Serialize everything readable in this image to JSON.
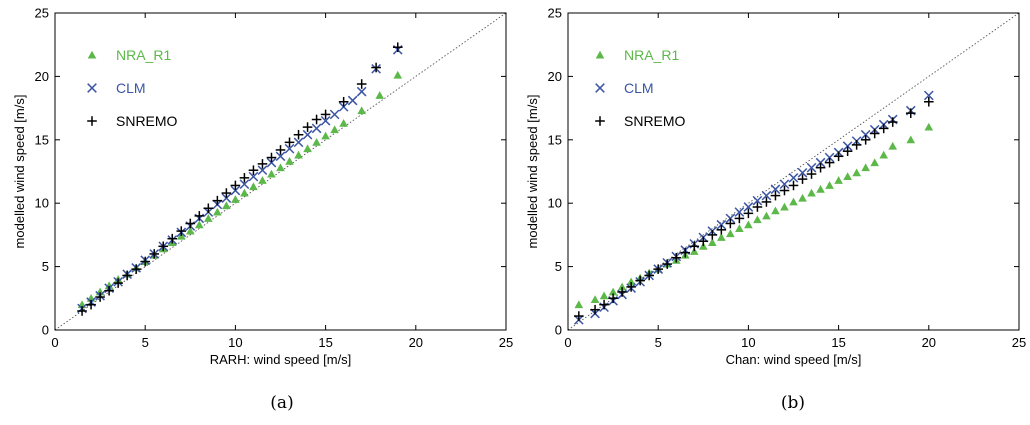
{
  "chart_data": [
    {
      "type": "scatter",
      "caption": "(a)",
      "xlabel": "RARH: wind speed [m/s]",
      "ylabel": "modelled wind speed [m/s]",
      "xlim": [
        0,
        25
      ],
      "ylim": [
        0,
        25
      ],
      "xticks": [
        0,
        5,
        10,
        15,
        20,
        25
      ],
      "yticks": [
        0,
        5,
        10,
        15,
        20,
        25
      ],
      "grid": false,
      "legend_position": "top-left",
      "reference_line": "1:1 dotted diagonal",
      "series": [
        {
          "name": "NRA_R1",
          "marker": "triangle",
          "color": "#5cb848",
          "x": [
            1.5,
            2.0,
            2.5,
            3.0,
            3.5,
            4.0,
            4.5,
            5.0,
            5.5,
            6.0,
            6.5,
            7.0,
            7.5,
            8.0,
            8.5,
            9.0,
            9.5,
            10.0,
            10.5,
            11.0,
            11.5,
            12.0,
            12.5,
            13.0,
            13.5,
            14.0,
            14.5,
            15.0,
            15.5,
            16.0,
            17.0,
            18.0,
            19.0
          ],
          "y": [
            2.0,
            2.5,
            3.0,
            3.5,
            4.0,
            4.4,
            4.9,
            5.4,
            5.9,
            6.4,
            6.9,
            7.4,
            7.8,
            8.3,
            8.8,
            9.3,
            9.8,
            10.3,
            10.8,
            11.3,
            11.8,
            12.3,
            12.8,
            13.3,
            13.8,
            14.3,
            14.8,
            15.3,
            15.8,
            16.3,
            17.3,
            18.5,
            20.1
          ]
        },
        {
          "name": "CLM",
          "marker": "x",
          "color": "#3b55a4",
          "x": [
            1.5,
            2.0,
            2.5,
            3.0,
            3.5,
            4.0,
            4.5,
            5.0,
            5.5,
            6.0,
            6.5,
            7.0,
            7.5,
            8.0,
            8.5,
            9.0,
            9.5,
            10.0,
            10.5,
            11.0,
            11.5,
            12.0,
            12.5,
            13.0,
            13.5,
            14.0,
            14.5,
            15.0,
            15.5,
            16.0,
            16.5,
            17.0,
            17.8,
            19.0
          ],
          "y": [
            1.7,
            2.2,
            2.7,
            3.3,
            3.8,
            4.4,
            4.9,
            5.5,
            6.0,
            6.6,
            7.1,
            7.7,
            8.2,
            8.8,
            9.3,
            9.9,
            10.4,
            11.0,
            11.5,
            12.1,
            12.6,
            13.2,
            13.7,
            14.3,
            14.8,
            15.4,
            15.9,
            16.5,
            17.0,
            17.6,
            18.1,
            18.8,
            20.6,
            22.1
          ]
        },
        {
          "name": "SNREMO",
          "marker": "plus",
          "color": "#000000",
          "x": [
            1.5,
            2.0,
            2.5,
            3.0,
            3.5,
            4.0,
            4.5,
            5.0,
            5.5,
            6.0,
            6.5,
            7.0,
            7.5,
            8.0,
            8.5,
            9.0,
            9.5,
            10.0,
            10.5,
            11.0,
            11.5,
            12.0,
            12.5,
            13.0,
            13.5,
            14.0,
            14.5,
            15.0,
            16.0,
            17.0,
            17.8,
            19.0
          ],
          "y": [
            1.5,
            2.0,
            2.6,
            3.1,
            3.7,
            4.3,
            4.8,
            5.4,
            6.0,
            6.6,
            7.2,
            7.8,
            8.4,
            9.0,
            9.6,
            10.2,
            10.8,
            11.4,
            12.0,
            12.6,
            13.1,
            13.6,
            14.2,
            14.8,
            15.4,
            16.0,
            16.6,
            17.0,
            18.0,
            19.4,
            20.7,
            22.3
          ]
        }
      ]
    },
    {
      "type": "scatter",
      "caption": "(b)",
      "xlabel": "Chan: wind speed [m/s]",
      "ylabel": "modelled wind speed [m/s]",
      "xlim": [
        0,
        25
      ],
      "ylim": [
        0,
        25
      ],
      "xticks": [
        0,
        5,
        10,
        15,
        20,
        25
      ],
      "yticks": [
        0,
        5,
        10,
        15,
        20,
        25
      ],
      "grid": false,
      "legend_position": "top-left",
      "reference_line": "1:1 dotted diagonal",
      "series": [
        {
          "name": "NRA_R1",
          "marker": "triangle",
          "color": "#5cb848",
          "x": [
            0.6,
            1.5,
            2.0,
            2.5,
            3.0,
            3.5,
            4.0,
            4.5,
            5.0,
            5.5,
            6.0,
            6.5,
            7.0,
            7.5,
            8.0,
            8.5,
            9.0,
            9.5,
            10.0,
            10.5,
            11.0,
            11.5,
            12.0,
            12.5,
            13.0,
            13.5,
            14.0,
            14.5,
            15.0,
            15.5,
            16.0,
            16.5,
            17.0,
            17.5,
            18.0,
            19.0,
            20.0
          ],
          "y": [
            2.0,
            2.4,
            2.7,
            3.0,
            3.4,
            3.8,
            4.1,
            4.5,
            4.8,
            5.2,
            5.5,
            5.9,
            6.2,
            6.6,
            6.9,
            7.3,
            7.6,
            8.0,
            8.3,
            8.7,
            9.0,
            9.4,
            9.7,
            10.1,
            10.4,
            10.8,
            11.1,
            11.4,
            11.8,
            12.1,
            12.4,
            12.8,
            13.2,
            13.8,
            14.5,
            15.0,
            16.0
          ]
        },
        {
          "name": "CLM",
          "marker": "x",
          "color": "#3b55a4",
          "x": [
            0.6,
            1.5,
            2.0,
            2.5,
            3.0,
            3.5,
            4.0,
            4.5,
            5.0,
            5.5,
            6.0,
            6.5,
            7.0,
            7.5,
            8.0,
            8.5,
            9.0,
            9.5,
            10.0,
            10.5,
            11.0,
            11.5,
            12.0,
            12.5,
            13.0,
            13.5,
            14.0,
            14.5,
            15.0,
            15.5,
            16.0,
            16.5,
            17.0,
            17.5,
            18.0,
            19.0,
            20.0
          ],
          "y": [
            0.8,
            1.3,
            1.8,
            2.3,
            2.8,
            3.3,
            3.8,
            4.3,
            4.8,
            5.3,
            5.8,
            6.3,
            6.8,
            7.3,
            7.8,
            8.3,
            8.8,
            9.3,
            9.7,
            10.2,
            10.6,
            11.1,
            11.5,
            12.0,
            12.4,
            12.8,
            13.2,
            13.6,
            14.0,
            14.5,
            14.9,
            15.4,
            15.8,
            16.2,
            16.6,
            17.3,
            18.5
          ]
        },
        {
          "name": "SNREMO",
          "marker": "plus",
          "color": "#000000",
          "x": [
            0.6,
            1.5,
            2.0,
            2.5,
            3.0,
            3.5,
            4.0,
            4.5,
            5.0,
            5.5,
            6.0,
            6.5,
            7.0,
            7.5,
            8.0,
            8.5,
            9.0,
            9.5,
            10.0,
            10.5,
            11.0,
            11.5,
            12.0,
            12.5,
            13.0,
            13.5,
            14.0,
            14.5,
            15.0,
            15.5,
            16.0,
            16.5,
            17.0,
            17.5,
            18.0,
            19.0,
            20.0
          ],
          "y": [
            1.1,
            1.6,
            2.0,
            2.5,
            3.0,
            3.4,
            3.9,
            4.3,
            4.8,
            5.2,
            5.7,
            6.1,
            6.6,
            7.0,
            7.5,
            7.9,
            8.4,
            8.8,
            9.2,
            9.7,
            10.1,
            10.6,
            11.0,
            11.4,
            11.9,
            12.3,
            12.8,
            13.2,
            13.7,
            14.1,
            14.6,
            15.0,
            15.5,
            15.9,
            16.4,
            17.1,
            18.0
          ]
        }
      ]
    }
  ]
}
